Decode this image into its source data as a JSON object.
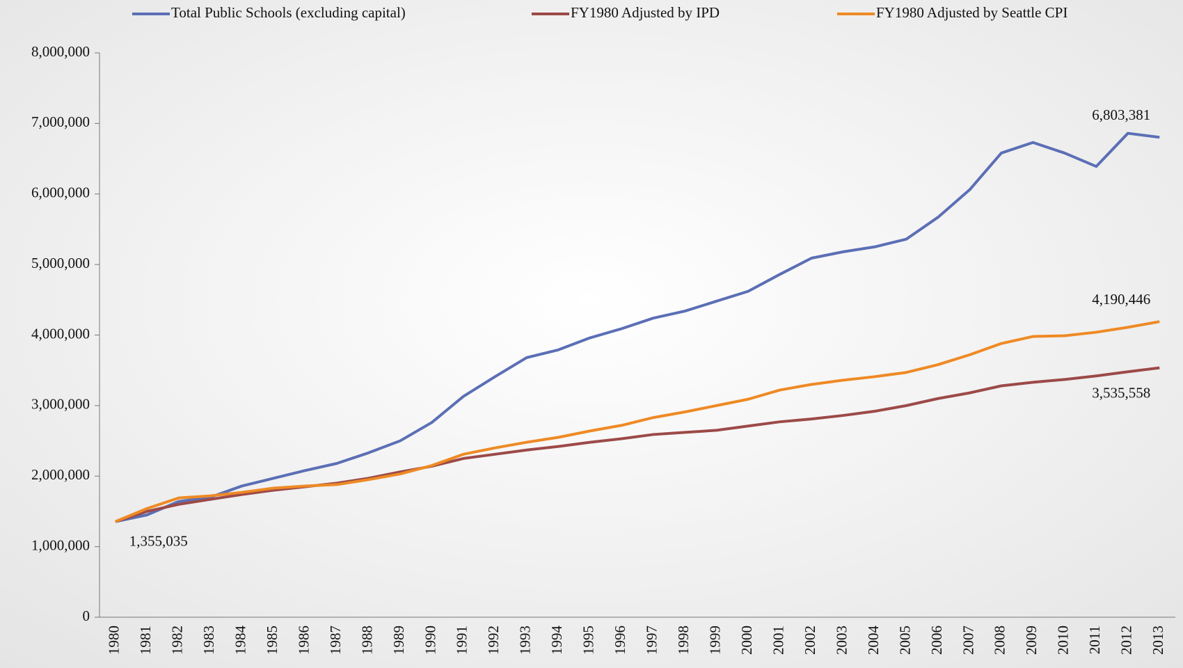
{
  "chart_data": {
    "type": "line",
    "categories": [
      "1980",
      "1981",
      "1982",
      "1983",
      "1984",
      "1985",
      "1986",
      "1987",
      "1988",
      "1989",
      "1990",
      "1991",
      "1992",
      "1993",
      "1994",
      "1995",
      "1996",
      "1997",
      "1998",
      "1999",
      "2000",
      "2001",
      "2002",
      "2003",
      "2004",
      "2005",
      "2006",
      "2007",
      "2008",
      "2009",
      "2010",
      "2011",
      "2012",
      "2013"
    ],
    "series": [
      {
        "name": "Total Public Schools (excluding capital)",
        "color": "#5b6fb5",
        "values": [
          1355035,
          1450000,
          1640000,
          1700000,
          1860000,
          1970000,
          2080000,
          2180000,
          2330000,
          2500000,
          2760000,
          3130000,
          3410000,
          3680000,
          3790000,
          3960000,
          4090000,
          4240000,
          4340000,
          4480000,
          4620000,
          4860000,
          5090000,
          5180000,
          5250000,
          5360000,
          5670000,
          6060000,
          6580000,
          6730000,
          6580000,
          6390000,
          6860000,
          6803381
        ],
        "value_labels": [
          "1,355,035",
          null,
          null,
          null,
          null,
          null,
          null,
          null,
          null,
          null,
          null,
          null,
          null,
          null,
          null,
          null,
          null,
          null,
          null,
          null,
          null,
          null,
          null,
          null,
          null,
          null,
          null,
          null,
          null,
          null,
          null,
          null,
          null,
          "6,803,381"
        ]
      },
      {
        "name": "FY1980 Adjusted by IPD",
        "color": "#9c4a48",
        "values": [
          1355035,
          1500000,
          1600000,
          1670000,
          1740000,
          1800000,
          1850000,
          1900000,
          1970000,
          2060000,
          2140000,
          2250000,
          2310000,
          2370000,
          2420000,
          2480000,
          2530000,
          2590000,
          2620000,
          2650000,
          2710000,
          2770000,
          2810000,
          2860000,
          2920000,
          3000000,
          3100000,
          3180000,
          3280000,
          3330000,
          3370000,
          3420000,
          3480000,
          3535558
        ],
        "value_labels": [
          null,
          null,
          null,
          null,
          null,
          null,
          null,
          null,
          null,
          null,
          null,
          null,
          null,
          null,
          null,
          null,
          null,
          null,
          null,
          null,
          null,
          null,
          null,
          null,
          null,
          null,
          null,
          null,
          null,
          null,
          null,
          null,
          null,
          "3,535,558"
        ]
      },
      {
        "name": "FY1980 Adjusted by Seattle CPI",
        "color": "#ee8a25",
        "values": [
          1355035,
          1540000,
          1690000,
          1720000,
          1770000,
          1830000,
          1860000,
          1880000,
          1950000,
          2030000,
          2150000,
          2310000,
          2400000,
          2480000,
          2550000,
          2640000,
          2720000,
          2830000,
          2910000,
          3000000,
          3090000,
          3220000,
          3300000,
          3360000,
          3410000,
          3470000,
          3580000,
          3720000,
          3880000,
          3980000,
          3990000,
          4040000,
          4110000,
          4190446
        ],
        "value_labels": [
          null,
          null,
          null,
          null,
          null,
          null,
          null,
          null,
          null,
          null,
          null,
          null,
          null,
          null,
          null,
          null,
          null,
          null,
          null,
          null,
          null,
          null,
          null,
          null,
          null,
          null,
          null,
          null,
          null,
          null,
          null,
          null,
          null,
          "4,190,446"
        ]
      }
    ],
    "ylim": [
      0,
      8000000
    ],
    "yticks": [
      0,
      {
        "value": 1000000,
        "label": "1,000,000"
      },
      {
        "value": 2000000,
        "label": "2,000,000"
      },
      {
        "value": 3000000,
        "label": "3,000,000"
      },
      {
        "value": 4000000,
        "label": "4,000,000"
      },
      {
        "value": 5000000,
        "label": "5,000,000"
      },
      {
        "value": 6000000,
        "label": "6,000,000"
      },
      {
        "value": 7000000,
        "label": "7,000,000"
      },
      {
        "value": 8000000,
        "label": "8,000,000"
      }
    ],
    "legend": "top"
  }
}
